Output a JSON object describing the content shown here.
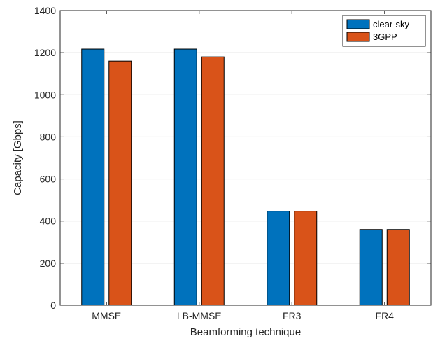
{
  "chart_data": {
    "type": "bar",
    "categories": [
      "MMSE",
      "LB-MMSE",
      "FR3",
      "FR4"
    ],
    "series": [
      {
        "name": "clear-sky",
        "values": [
          1217,
          1217,
          447,
          360
        ],
        "color": "#0072BD"
      },
      {
        "name": "3GPP",
        "values": [
          1160,
          1180,
          447,
          360
        ],
        "color": "#D95319"
      }
    ],
    "title": "",
    "xlabel": "Beamforming technique",
    "ylabel": "Capacity [Gbps]",
    "ylim": [
      0,
      1400
    ],
    "yticks": [
      0,
      200,
      400,
      600,
      800,
      1000,
      1200,
      1400
    ],
    "grid": true,
    "legend_position": "top-right"
  }
}
